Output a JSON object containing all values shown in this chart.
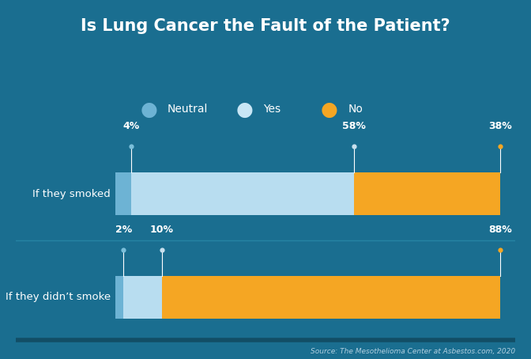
{
  "title": "Is Lung Cancer the Fault of the Patient?",
  "bg_color": "#1a6e90",
  "panel_color": "#1d7298",
  "categories": [
    "If they smoked",
    "If they didn’t smoke"
  ],
  "neutral_values": [
    4,
    2
  ],
  "yes_values": [
    58,
    10
  ],
  "no_values": [
    38,
    88
  ],
  "neutral_color": "#6db3d4",
  "yes_color": "#b8ddf0",
  "no_color": "#f5a623",
  "legend_neutral_color": "#6db3d4",
  "legend_yes_color": "#c8e6f5",
  "legend_no_color": "#f5a623",
  "white": "#ffffff",
  "source_text": "Source: The Mesothelioma Center at Asbestos.com, 2020",
  "source_color": "#b0cfe0",
  "sep_color": "#2a8aaa",
  "dot_neutral": "#7bbfda",
  "dot_yes": "#c8e0ee",
  "dot_no": "#f5a623"
}
